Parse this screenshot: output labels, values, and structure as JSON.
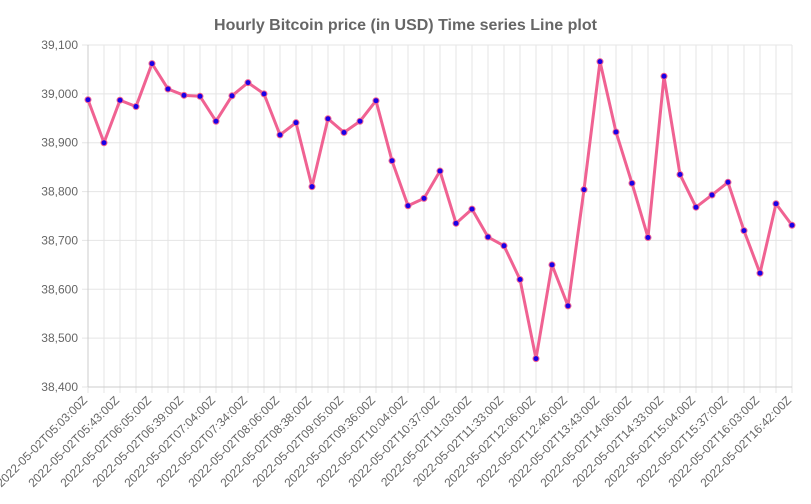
{
  "chart_data": {
    "type": "line",
    "title": "Hourly Bitcoin price (in USD) Time series Line plot",
    "xlabel": "",
    "ylabel": "",
    "ylim": [
      38400,
      39100
    ],
    "yticks": [
      "38,400",
      "38,500",
      "38,600",
      "38,700",
      "38,800",
      "38,900",
      "39,000",
      "39,100"
    ],
    "ytick_values": [
      38400,
      38500,
      38600,
      38700,
      38800,
      38900,
      39000,
      39100
    ],
    "grid": true,
    "legend": "none",
    "line_color": "#f06292",
    "point_color": "#1a00e6",
    "x_labels": [
      "2022-05-02T05:03:00Z",
      "2022-05-02T05:43:00Z",
      "2022-05-02T06:05:00Z",
      "2022-05-02T06:39:00Z",
      "2022-05-02T07:04:00Z",
      "2022-05-02T07:34:00Z",
      "2022-05-02T08:06:00Z",
      "2022-05-02T08:38:00Z",
      "2022-05-02T09:05:00Z",
      "2022-05-02T09:36:00Z",
      "2022-05-02T10:04:00Z",
      "2022-05-02T10:37:00Z",
      "2022-05-02T11:03:00Z",
      "2022-05-02T11:33:00Z",
      "2022-05-02T12:06:00Z",
      "2022-05-02T12:46:00Z",
      "2022-05-02T13:43:00Z",
      "2022-05-02T14:06:00Z",
      "2022-05-02T14:33:00Z",
      "2022-05-02T15:04:00Z",
      "2022-05-02T15:37:00Z",
      "2022-05-02T16:03:00Z",
      "2022-05-02T16:42:00Z"
    ],
    "values": [
      38988,
      38900,
      38987,
      38974,
      39062,
      39010,
      38997,
      38995,
      38944,
      38996,
      39023,
      39000,
      38916,
      38941,
      38810,
      38949,
      38921,
      38944,
      38986,
      38863,
      38771,
      38786,
      38842,
      38735,
      38764,
      38707,
      38689,
      38620,
      38458,
      38650,
      38566,
      38804,
      39066,
      38922,
      38817,
      38706,
      39036,
      38835,
      38768,
      38793,
      38819,
      38720,
      38633,
      38775,
      38731
    ]
  }
}
